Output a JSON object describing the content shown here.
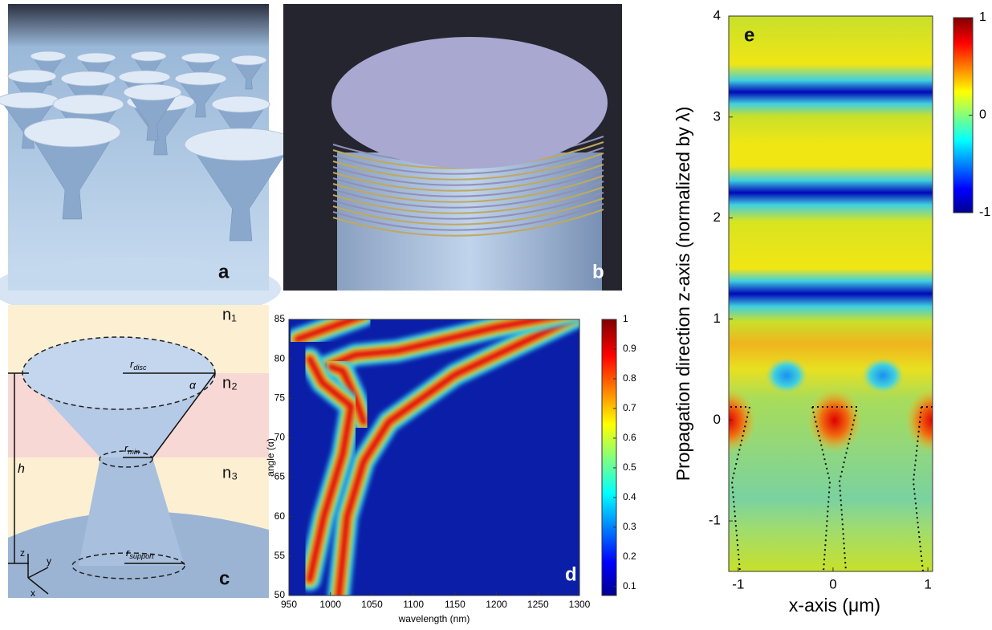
{
  "panel_a": {
    "label": "a"
  },
  "panel_b": {
    "label": "b"
  },
  "panel_c": {
    "label": "c",
    "media": [
      "n₁",
      "n₂",
      "n₃"
    ],
    "r_disc": {
      "base": "r",
      "sub": "disc"
    },
    "angle": "α",
    "r_min": {
      "base": "r",
      "sub": "min"
    },
    "height": "h",
    "r_support": {
      "base": "r",
      "sub": "support"
    },
    "axes": [
      "z",
      "y",
      "x"
    ]
  },
  "chart_data": [
    {
      "type": "heatmap",
      "panel_label": "d",
      "x_label": "wavelength (nm)",
      "y_label": "angle (α)",
      "xlim": [
        950,
        1300
      ],
      "xticks": [
        950,
        1000,
        1050,
        1100,
        1150,
        1200,
        1250,
        1300
      ],
      "ylim": [
        50,
        85
      ],
      "yticks": [
        50,
        55,
        60,
        65,
        70,
        75,
        80,
        85
      ],
      "colorbar": {
        "lim": [
          0.07,
          1
        ],
        "ticks": [
          0.1,
          0.2,
          0.3,
          0.4,
          0.5,
          0.6,
          0.7,
          0.8,
          0.9,
          1
        ]
      }
    },
    {
      "type": "heatmap",
      "panel_label": "e",
      "x_label": "x-axis (μm)",
      "y_label": "Propagation direction z-axis (normalized by λ)",
      "xlim": [
        -1.1,
        1.05
      ],
      "xticks": [
        -1,
        0,
        1
      ],
      "ylim": [
        -1.5,
        4
      ],
      "yticks": [
        -1,
        0,
        1,
        2,
        3,
        4
      ],
      "colorbar": {
        "lim": [
          -1,
          1
        ],
        "ticks": [
          -1,
          0,
          1
        ]
      }
    }
  ]
}
